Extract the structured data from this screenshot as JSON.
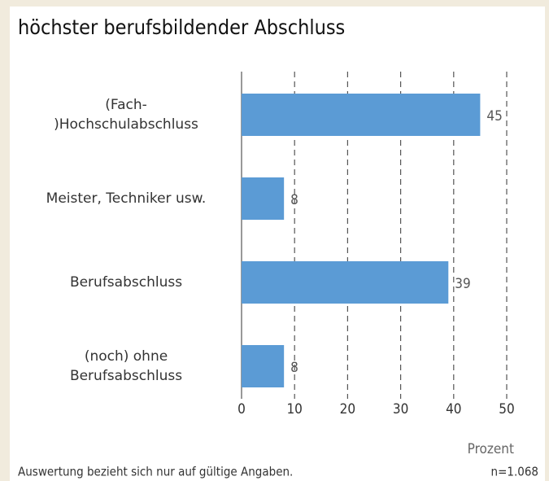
{
  "chart_data": {
    "type": "bar",
    "orientation": "horizontal",
    "title": "höchster berufsbildender Abschluss",
    "categories": [
      "(Fach-\n)Hochschulabschluss",
      "Meister, Techniker usw.",
      "Berufsabschluss",
      "(noch) ohne\nBerufsabschluss"
    ],
    "values": [
      45,
      8,
      39,
      8
    ],
    "color": "#5b9bd5",
    "xlim": [
      0,
      50
    ],
    "xticks": [
      0,
      10,
      20,
      30,
      40,
      50
    ],
    "xlabel": "Prozent",
    "grid": true,
    "footnote": "Auswertung bezieht sich nur auf gültige Angaben.",
    "sample_size": "n=1.068"
  }
}
